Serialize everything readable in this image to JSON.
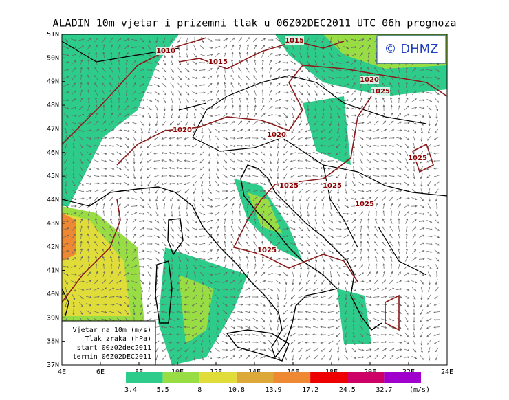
{
  "title": "ALADIN 10m vjetar i prizemni tlak u 06Z02DEC2011 UTC 06h prognoza",
  "logo": "© DHMZ",
  "lon_ticks": [
    {
      "value": 4,
      "label": "4E"
    },
    {
      "value": 6,
      "label": "6E"
    },
    {
      "value": 8,
      "label": "8E"
    },
    {
      "value": 10,
      "label": "10E"
    },
    {
      "value": 12,
      "label": "12E"
    },
    {
      "value": 14,
      "label": "14E"
    },
    {
      "value": 16,
      "label": "16E"
    },
    {
      "value": 18,
      "label": "18E"
    },
    {
      "value": 20,
      "label": "20E"
    },
    {
      "value": 22,
      "label": "22E"
    },
    {
      "value": 24,
      "label": "24E"
    }
  ],
  "lat_ticks": [
    {
      "value": 37,
      "label": "37N"
    },
    {
      "value": 38,
      "label": "38N"
    },
    {
      "value": 39,
      "label": "39N"
    },
    {
      "value": 40,
      "label": "40N"
    },
    {
      "value": 41,
      "label": "41N"
    },
    {
      "value": 42,
      "label": "42N"
    },
    {
      "value": 43,
      "label": "43N"
    },
    {
      "value": 44,
      "label": "44N"
    },
    {
      "value": 45,
      "label": "45N"
    },
    {
      "value": 46,
      "label": "46N"
    },
    {
      "value": 47,
      "label": "47N"
    },
    {
      "value": 48,
      "label": "48N"
    },
    {
      "value": 49,
      "label": "49N"
    },
    {
      "value": 50,
      "label": "50N"
    },
    {
      "value": 51,
      "label": "51N"
    }
  ],
  "info_box": [
    "Vjetar na 10m (m/s)",
    "Tlak zraka (hPa)",
    "start 00z02dec2011",
    "termin 06Z02DEC2011"
  ],
  "colorbar": {
    "levels": [
      3.4,
      5.5,
      8,
      10.8,
      13.9,
      17.2,
      24.5,
      32.7
    ],
    "unit": "(m/s)",
    "colors": [
      "#2ecc8a",
      "#99dd44",
      "#e0dc3a",
      "#dda83a",
      "#ee8833",
      "#ee0000",
      "#cc0066",
      "#a000cc"
    ]
  },
  "isobars": [
    1010,
    1015,
    1015,
    1020,
    1025,
    1020,
    1020,
    1025,
    1025,
    1025,
    1025,
    1025
  ]
}
